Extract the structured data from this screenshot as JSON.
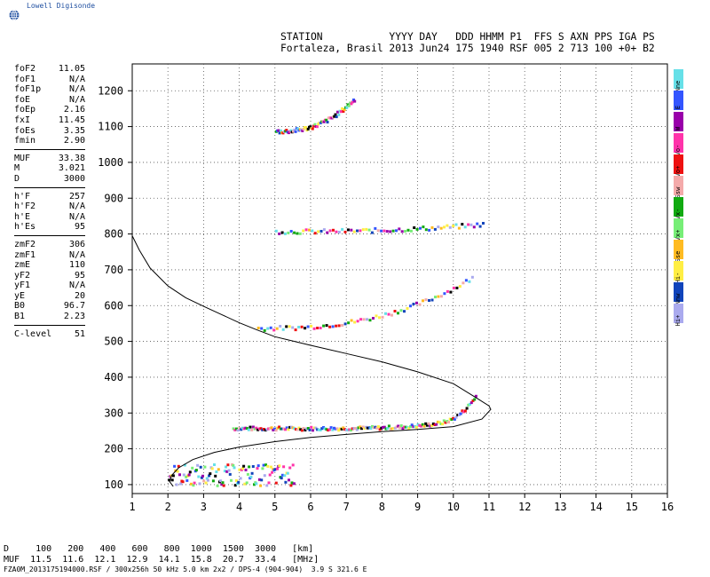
{
  "header": {
    "brand": "Lowell Digisonde",
    "line1": "STATION           YYYY DAY   DDD HHMM P1  FFS S AXN PPS IGA PS",
    "line2": "Fortaleza, Brasil 2013 Jun24 175 1940 RSF 005 2 713 100 +0+ B2"
  },
  "params": [
    {
      "label": "foF2",
      "value": "11.05"
    },
    {
      "label": "foF1",
      "value": "N/A"
    },
    {
      "label": "foF1p",
      "value": "N/A"
    },
    {
      "label": "foE",
      "value": "N/A"
    },
    {
      "label": "foEp",
      "value": "2.16"
    },
    {
      "label": "fxI",
      "value": "11.45"
    },
    {
      "label": "foEs",
      "value": "3.35"
    },
    {
      "label": "fmin",
      "value": "2.90"
    },
    {
      "sep": true
    },
    {
      "label": "MUF",
      "value": "33.38"
    },
    {
      "label": "M",
      "value": "3.021"
    },
    {
      "label": "D",
      "value": "3000"
    },
    {
      "sep": true
    },
    {
      "label": "h'F",
      "value": "257"
    },
    {
      "label": "h'F2",
      "value": "N/A"
    },
    {
      "label": "h'E",
      "value": "N/A"
    },
    {
      "label": "h'Es",
      "value": "95"
    },
    {
      "sep": true
    },
    {
      "label": "zmF2",
      "value": "306"
    },
    {
      "label": "zmF1",
      "value": "N/A"
    },
    {
      "label": "zmE",
      "value": "110"
    },
    {
      "label": "yF2",
      "value": "95"
    },
    {
      "label": "yF1",
      "value": "N/A"
    },
    {
      "label": "yE",
      "value": "20"
    },
    {
      "label": "B0",
      "value": "96.7"
    },
    {
      "label": "B1",
      "value": "2.23"
    },
    {
      "sep": true
    },
    {
      "label": "C-level",
      "value": "51"
    }
  ],
  "legend": [
    {
      "label": "Nne",
      "color": "#66e0e8"
    },
    {
      "label": "E",
      "color": "#3355ff"
    },
    {
      "label": "W",
      "color": "#9900aa"
    },
    {
      "label": "Vo-",
      "color": "#ff33aa"
    },
    {
      "label": "Vo+",
      "color": "#ee1111"
    },
    {
      "label": "Ssw",
      "color": "#f4aaaa"
    },
    {
      "label": "Vx-",
      "color": "#11aa11"
    },
    {
      "label": "Vx+",
      "color": "#77ee77"
    },
    {
      "label": "Sse",
      "color": "#ffbb22"
    },
    {
      "label": "Hi-",
      "color": "#ffee44"
    },
    {
      "label": "Nnw",
      "color": "#1144bb"
    },
    {
      "label": "Hi+",
      "color": "#aaaaee"
    }
  ],
  "muf_table": {
    "d_row": "D     100   200   400   600   800  1000  1500  3000   [km]",
    "muf_row": "MUF  11.5  11.6  12.1  12.9  14.1  15.8  20.7  33.4   [MHz]"
  },
  "footer": "FZA0M_2013175194000.RSF / 300x256h 50 kHz 5.0 km 2x2 / DPS-4 (904-904)  3.9 S 321.6 E",
  "chart_data": {
    "type": "scatter",
    "xlim": [
      1,
      16
    ],
    "ylim": [
      75,
      1275
    ],
    "xticks": [
      1,
      2,
      3,
      4,
      5,
      6,
      7,
      8,
      9,
      10,
      11,
      12,
      13,
      14,
      15,
      16
    ],
    "yticks": [
      100,
      200,
      300,
      400,
      500,
      600,
      700,
      800,
      900,
      1000,
      1100,
      1200
    ],
    "grid": true,
    "profile": [
      [
        1.0,
        795
      ],
      [
        1.2,
        755
      ],
      [
        1.5,
        705
      ],
      [
        2.0,
        655
      ],
      [
        2.5,
        622
      ],
      [
        3.0,
        598
      ],
      [
        3.5,
        575
      ],
      [
        4.0,
        552
      ],
      [
        4.5,
        532
      ],
      [
        5.0,
        513
      ],
      [
        6.0,
        489
      ],
      [
        7.0,
        466
      ],
      [
        8.0,
        443
      ],
      [
        9.0,
        415
      ],
      [
        10.0,
        382
      ],
      [
        10.6,
        345
      ],
      [
        11.0,
        320
      ],
      [
        11.05,
        310
      ],
      [
        10.8,
        283
      ],
      [
        10.0,
        262
      ],
      [
        9.0,
        254
      ],
      [
        8.0,
        248
      ],
      [
        7.0,
        240
      ],
      [
        6.0,
        232
      ],
      [
        5.0,
        220
      ],
      [
        4.0,
        205
      ],
      [
        3.3,
        190
      ],
      [
        2.7,
        170
      ],
      [
        2.3,
        147
      ],
      [
        2.1,
        125
      ],
      [
        2.05,
        108
      ],
      [
        2.15,
        95
      ]
    ],
    "traces": [
      {
        "layer": "F2",
        "x0": 3.8,
        "x1": 10.6,
        "h0": 260,
        "h1": 360,
        "min": 250
      },
      {
        "layer": "F2 2-hop",
        "x0": 4.5,
        "x1": 10.5,
        "h0": 540,
        "h1": 680,
        "min": 0
      },
      {
        "layer": "F2 3-hop",
        "x0": 5.0,
        "x1": 10.8,
        "h0": 810,
        "h1": 830,
        "min": 0
      },
      {
        "layer": "F2 4-hop",
        "x0": 5.0,
        "x1": 7.2,
        "h0": 1090,
        "h1": 1180,
        "min": 0
      },
      {
        "layer": "Es",
        "x0": 2.0,
        "x1": 5.5,
        "h0": 100,
        "h1": 160,
        "min": 0
      }
    ]
  }
}
